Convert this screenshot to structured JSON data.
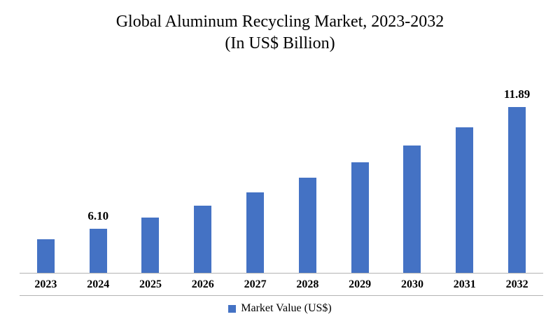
{
  "title": {
    "line1": "Global Aluminum Recycling Market, 2023-2032",
    "line2": "(In US$ Billion)"
  },
  "legend": {
    "label": "Market Value (US$)",
    "color": "#4472C4"
  },
  "chart_data": {
    "type": "bar",
    "title": "Global Aluminum Recycling Market, 2023-2032 (In US$ Billion)",
    "categories": [
      "2023",
      "2024",
      "2025",
      "2026",
      "2027",
      "2028",
      "2029",
      "2030",
      "2031",
      "2032"
    ],
    "values": [
      5.61,
      6.1,
      6.63,
      7.21,
      7.84,
      8.52,
      9.26,
      10.07,
      10.94,
      11.89
    ],
    "data_labels": [
      "",
      "6.10",
      "",
      "",
      "",
      "",
      "",
      "",
      "",
      "11.89"
    ],
    "xlabel": "",
    "ylabel": "",
    "ylim": [
      4,
      12
    ],
    "bar_color": "#4472C4",
    "grid": false,
    "legend_position": "bottom",
    "legend_entries": [
      "Market Value (US$)"
    ]
  }
}
